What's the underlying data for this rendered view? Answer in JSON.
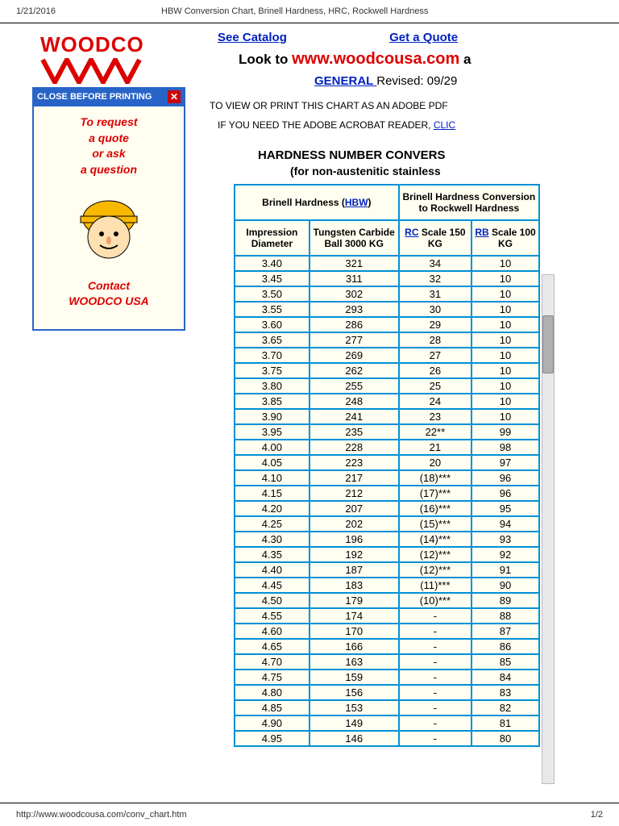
{
  "print_date": "1/21/2016",
  "doc_title": "HBW Conversion Chart, Brinell Hardness, HRC, Rockwell Hardness",
  "footer_url": "http://www.woodcousa.com/conv_chart.htm",
  "page_num": "1/2",
  "logo": "WOODCO",
  "close_label": "CLOSE BEFORE PRINTING",
  "side": {
    "l1": "To request",
    "l2": "a quote",
    "l3": "or ask",
    "l4": "a question",
    "c1": "Contact",
    "c2": "WOODCO USA"
  },
  "links": {
    "catalog": "See Catalog",
    "quote": "Get a Quote"
  },
  "lookto_pre": "Look to ",
  "lookto_url": "www.woodcousa.com",
  "lookto_post": " a",
  "general": "GENERAL ",
  "revised": " Revised: 09/29",
  "notice1": "TO VIEW OR PRINT THIS CHART AS AN ADOBE PDF",
  "notice2": "IF YOU NEED THE ADOBE ACROBAT READER, ",
  "notice2_link": "CLIC",
  "chart_title": "HARDNESS NUMBER CONVERS",
  "chart_sub": "(for non-austenitic stainless",
  "headers": {
    "brinell": "Brinell Hardness (",
    "hbw": "HBW",
    "brinell2": ")",
    "conv": "Brinell Hardness Conversion to Rockwell Hardness",
    "imp": "Impression Diameter",
    "tung": "Tungsten Carbide Ball 3000 KG",
    "rc": "RC",
    "rc2": " Scale 150 KG",
    "rb": "RB",
    "rb2": " Scale 100 KG"
  },
  "rows": [
    [
      "3.40",
      "321",
      "34",
      "10"
    ],
    [
      "3.45",
      "311",
      "32",
      "10"
    ],
    [
      "3.50",
      "302",
      "31",
      "10"
    ],
    [
      "3.55",
      "293",
      "30",
      "10"
    ],
    [
      "3.60",
      "286",
      "29",
      "10"
    ],
    [
      "3.65",
      "277",
      "28",
      "10"
    ],
    [
      "3.70",
      "269",
      "27",
      "10"
    ],
    [
      "3.75",
      "262",
      "26",
      "10"
    ],
    [
      "3.80",
      "255",
      "25",
      "10"
    ],
    [
      "3.85",
      "248",
      "24",
      "10"
    ],
    [
      "3.90",
      "241",
      "23",
      "10"
    ],
    [
      "3.95",
      "235",
      "22**",
      "99"
    ],
    [
      "4.00",
      "228",
      "21",
      "98"
    ],
    [
      "4.05",
      "223",
      "20",
      "97"
    ],
    [
      "4.10",
      "217",
      "(18)***",
      "96"
    ],
    [
      "4.15",
      "212",
      "(17)***",
      "96"
    ],
    [
      "4.20",
      "207",
      "(16)***",
      "95"
    ],
    [
      "4.25",
      "202",
      "(15)***",
      "94"
    ],
    [
      "4.30",
      "196",
      "(14)***",
      "93"
    ],
    [
      "4.35",
      "192",
      "(12)***",
      "92"
    ],
    [
      "4.40",
      "187",
      "(12)***",
      "91"
    ],
    [
      "4.45",
      "183",
      "(11)***",
      "90"
    ],
    [
      "4.50",
      "179",
      "(10)***",
      "89"
    ],
    [
      "4.55",
      "174",
      "-",
      "88"
    ],
    [
      "4.60",
      "170",
      "-",
      "87"
    ],
    [
      "4.65",
      "166",
      "-",
      "86"
    ],
    [
      "4.70",
      "163",
      "-",
      "85"
    ],
    [
      "4.75",
      "159",
      "-",
      "84"
    ],
    [
      "4.80",
      "156",
      "-",
      "83"
    ],
    [
      "4.85",
      "153",
      "-",
      "82"
    ],
    [
      "4.90",
      "149",
      "-",
      "81"
    ],
    [
      "4.95",
      "146",
      "-",
      "80"
    ]
  ]
}
